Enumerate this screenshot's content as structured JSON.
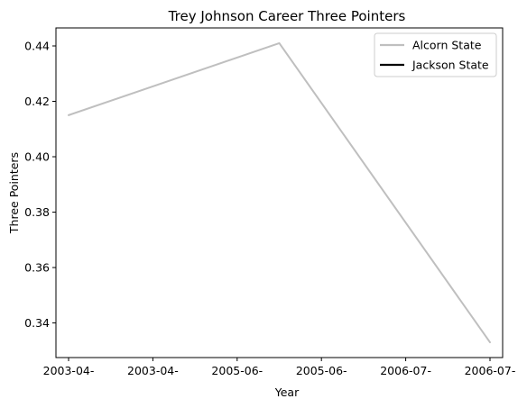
{
  "chart_data": {
    "type": "line",
    "title": "Trey Johnson Career Three Pointers",
    "xlabel": "Year",
    "ylabel": "Three Pointers",
    "x_tick_labels": [
      "2003-04-",
      "2003-04-",
      "2005-06-",
      "2005-06-",
      "2006-07-",
      "2006-07-"
    ],
    "x_range": [
      -0.15,
      5.15
    ],
    "y_ticks": [
      0.34,
      0.36,
      0.38,
      0.4,
      0.42,
      0.44
    ],
    "y_tick_labels": [
      "0.34",
      "0.36",
      "0.38",
      "0.40",
      "0.42",
      "0.44"
    ],
    "ylim": [
      0.3275,
      0.4465
    ],
    "grid": false,
    "legend_position": "top-right",
    "series": [
      {
        "name": "Alcorn State",
        "color": "#bfbfbf",
        "x": [
          0,
          2.5,
          5
        ],
        "values": [
          0.415,
          0.441,
          0.333
        ]
      },
      {
        "name": "Jackson State",
        "color": "#000000",
        "x": [],
        "values": []
      }
    ]
  }
}
